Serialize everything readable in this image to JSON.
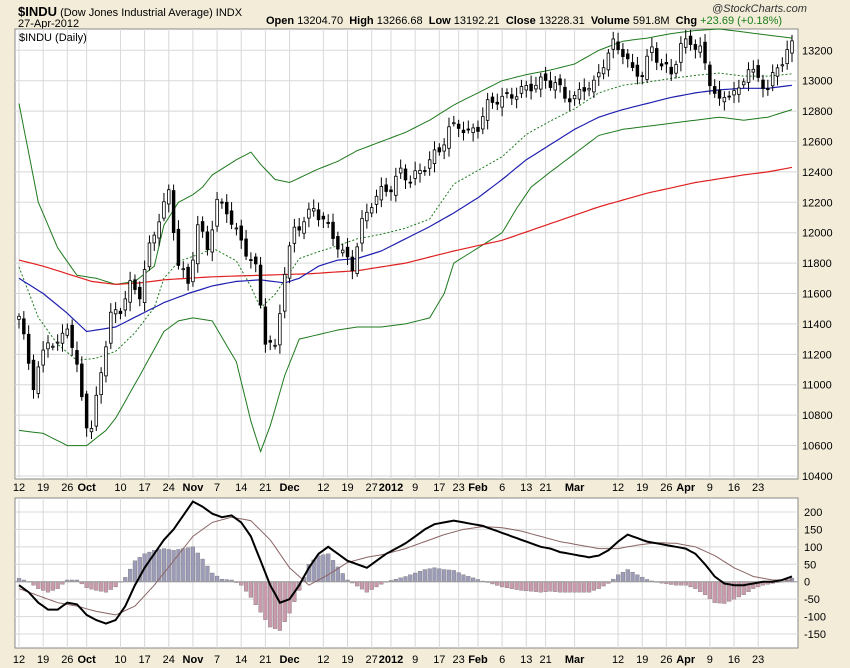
{
  "header": {
    "symbol": "$INDU",
    "name": "(Dow Jones Industrial Average)",
    "exchange": "INDX",
    "date": "27-Apr-2012",
    "open_label": "Open",
    "open": "13204.70",
    "high_label": "High",
    "high": "13266.68",
    "low_label": "Low",
    "low": "13192.21",
    "close_label": "Close",
    "close": "13228.31",
    "volume_label": "Volume",
    "volume": "591.8M",
    "chg_label": "Chg",
    "chg": "+23.69 (+0.18%)",
    "watermark": "@StockCharts.com",
    "panel_label": "$INDU (Daily)"
  },
  "colors": {
    "background": "#f2ecd9",
    "panel": "#ffffff",
    "grid": "#d8d8d8",
    "up": "#ffffff",
    "down": "#000000",
    "sma50": "#1f1fb0",
    "sma200": "#e02020",
    "bollinger": "#1e7a1e",
    "histogram_pos": "#9c9cb8",
    "histogram_neg": "#c99aab",
    "macd": "#000000",
    "signal": "#8a6464"
  },
  "chart_data": [
    {
      "type": "candlestick",
      "title": "$INDU (Daily)",
      "ylim": [
        10380,
        13340
      ],
      "yticks": [
        10400,
        10600,
        10800,
        11000,
        11200,
        11400,
        11600,
        11800,
        12000,
        12200,
        12400,
        12600,
        12800,
        13000,
        13200
      ],
      "x_labels": [
        "12",
        "19",
        "26",
        "Oct",
        "10",
        "17",
        "24",
        "Nov",
        "7",
        "14",
        "21",
        "Dec",
        "12",
        "19",
        "27",
        "2012",
        "9",
        "17",
        "23",
        "Feb",
        "6",
        "13",
        "21",
        "Mar",
        "12",
        "19",
        "26",
        "Apr",
        "9",
        "16",
        "23"
      ],
      "x_label_days": [
        0,
        5,
        10,
        14,
        21,
        26,
        31,
        36,
        41,
        46,
        51,
        56,
        63,
        68,
        73,
        77,
        82,
        87,
        91,
        95,
        100,
        105,
        109,
        115,
        124,
        129,
        134,
        138,
        143,
        148,
        153
      ],
      "bold_labels": [
        "Oct",
        "Nov",
        "Dec",
        "2012",
        "Feb",
        "Mar",
        "Apr"
      ],
      "last_day": 160,
      "close_anchors": [
        [
          0,
          11450
        ],
        [
          3,
          11000
        ],
        [
          6,
          11300
        ],
        [
          8,
          11250
        ],
        [
          10,
          11400
        ],
        [
          12,
          11100
        ],
        [
          14,
          10750
        ],
        [
          15,
          10700
        ],
        [
          17,
          11100
        ],
        [
          19,
          11450
        ],
        [
          21,
          11500
        ],
        [
          23,
          11650
        ],
        [
          25,
          11600
        ],
        [
          27,
          11900
        ],
        [
          29,
          12100
        ],
        [
          31,
          12260
        ],
        [
          33,
          11800
        ],
        [
          35,
          11660
        ],
        [
          37,
          12050
        ],
        [
          39,
          11900
        ],
        [
          41,
          12200
        ],
        [
          43,
          12150
        ],
        [
          45,
          12000
        ],
        [
          47,
          11880
        ],
        [
          49,
          11760
        ],
        [
          51,
          11300
        ],
        [
          53,
          11230
        ],
        [
          55,
          11750
        ],
        [
          57,
          12020
        ],
        [
          59,
          12080
        ],
        [
          61,
          12160
        ],
        [
          63,
          12080
        ],
        [
          65,
          11980
        ],
        [
          67,
          11860
        ],
        [
          69,
          11780
        ],
        [
          71,
          12060
        ],
        [
          73,
          12200
        ],
        [
          75,
          12270
        ],
        [
          77,
          12300
        ],
        [
          79,
          12400
        ],
        [
          81,
          12350
        ],
        [
          83,
          12400
        ],
        [
          85,
          12480
        ],
        [
          87,
          12540
        ],
        [
          89,
          12680
        ],
        [
          91,
          12710
        ],
        [
          93,
          12650
        ],
        [
          95,
          12700
        ],
        [
          97,
          12840
        ],
        [
          99,
          12880
        ],
        [
          101,
          12890
        ],
        [
          103,
          12920
        ],
        [
          105,
          12950
        ],
        [
          107,
          12980
        ],
        [
          109,
          13000
        ],
        [
          111,
          12980
        ],
        [
          113,
          12900
        ],
        [
          115,
          12880
        ],
        [
          117,
          12960
        ],
        [
          119,
          12970
        ],
        [
          121,
          13120
        ],
        [
          123,
          13240
        ],
        [
          125,
          13190
        ],
        [
          127,
          13060
        ],
        [
          129,
          13050
        ],
        [
          131,
          13210
        ],
        [
          133,
          13100
        ],
        [
          135,
          13050
        ],
        [
          137,
          13230
        ],
        [
          139,
          13260
        ],
        [
          141,
          13200
        ],
        [
          143,
          13000
        ],
        [
          145,
          12850
        ],
        [
          147,
          12930
        ],
        [
          149,
          12920
        ],
        [
          151,
          13100
        ],
        [
          153,
          13000
        ],
        [
          155,
          12960
        ],
        [
          157,
          13080
        ],
        [
          159,
          13200
        ],
        [
          160,
          13228
        ]
      ],
      "sma50_anchors": [
        [
          0,
          11700
        ],
        [
          5,
          11600
        ],
        [
          10,
          11470
        ],
        [
          14,
          11350
        ],
        [
          20,
          11380
        ],
        [
          25,
          11460
        ],
        [
          30,
          11540
        ],
        [
          35,
          11600
        ],
        [
          40,
          11650
        ],
        [
          45,
          11680
        ],
        [
          50,
          11690
        ],
        [
          55,
          11670
        ],
        [
          58,
          11700
        ],
        [
          62,
          11780
        ],
        [
          66,
          11820
        ],
        [
          70,
          11830
        ],
        [
          75,
          11880
        ],
        [
          80,
          11960
        ],
        [
          85,
          12040
        ],
        [
          90,
          12130
        ],
        [
          95,
          12230
        ],
        [
          100,
          12350
        ],
        [
          105,
          12480
        ],
        [
          110,
          12580
        ],
        [
          115,
          12680
        ],
        [
          120,
          12760
        ],
        [
          125,
          12810
        ],
        [
          130,
          12850
        ],
        [
          135,
          12890
        ],
        [
          140,
          12920
        ],
        [
          145,
          12940
        ],
        [
          150,
          12950
        ],
        [
          155,
          12950
        ],
        [
          160,
          12970
        ]
      ],
      "sma200_anchors": [
        [
          0,
          11820
        ],
        [
          5,
          11780
        ],
        [
          10,
          11730
        ],
        [
          15,
          11680
        ],
        [
          20,
          11660
        ],
        [
          25,
          11670
        ],
        [
          30,
          11690
        ],
        [
          40,
          11710
        ],
        [
          50,
          11720
        ],
        [
          60,
          11730
        ],
        [
          70,
          11750
        ],
        [
          80,
          11800
        ],
        [
          90,
          11880
        ],
        [
          100,
          11950
        ],
        [
          110,
          12060
        ],
        [
          120,
          12170
        ],
        [
          130,
          12260
        ],
        [
          140,
          12330
        ],
        [
          150,
          12380
        ],
        [
          155,
          12400
        ],
        [
          160,
          12430
        ]
      ],
      "bb_upper_anchors": [
        [
          0,
          12850
        ],
        [
          4,
          12200
        ],
        [
          8,
          11900
        ],
        [
          12,
          11720
        ],
        [
          16,
          11700
        ],
        [
          20,
          11660
        ],
        [
          24,
          11680
        ],
        [
          28,
          11780
        ],
        [
          30,
          12050
        ],
        [
          33,
          12200
        ],
        [
          36,
          12250
        ],
        [
          38,
          12300
        ],
        [
          40,
          12380
        ],
        [
          45,
          12480
        ],
        [
          48,
          12530
        ],
        [
          50,
          12450
        ],
        [
          53,
          12350
        ],
        [
          56,
          12330
        ],
        [
          58,
          12360
        ],
        [
          62,
          12420
        ],
        [
          66,
          12470
        ],
        [
          70,
          12540
        ],
        [
          75,
          12600
        ],
        [
          80,
          12660
        ],
        [
          85,
          12740
        ],
        [
          90,
          12840
        ],
        [
          95,
          12920
        ],
        [
          100,
          13000
        ],
        [
          105,
          13040
        ],
        [
          110,
          13070
        ],
        [
          115,
          13110
        ],
        [
          120,
          13200
        ],
        [
          125,
          13260
        ],
        [
          130,
          13280
        ],
        [
          135,
          13310
        ],
        [
          140,
          13330
        ],
        [
          145,
          13340
        ],
        [
          150,
          13320
        ],
        [
          155,
          13300
        ],
        [
          160,
          13280
        ]
      ],
      "bb_lower_anchors": [
        [
          0,
          10700
        ],
        [
          5,
          10680
        ],
        [
          10,
          10600
        ],
        [
          14,
          10600
        ],
        [
          18,
          10700
        ],
        [
          20,
          10780
        ],
        [
          25,
          11060
        ],
        [
          30,
          11350
        ],
        [
          33,
          11420
        ],
        [
          36,
          11440
        ],
        [
          40,
          11420
        ],
        [
          45,
          11150
        ],
        [
          48,
          10760
        ],
        [
          50,
          10560
        ],
        [
          52,
          10730
        ],
        [
          55,
          11060
        ],
        [
          58,
          11300
        ],
        [
          62,
          11330
        ],
        [
          66,
          11360
        ],
        [
          70,
          11380
        ],
        [
          75,
          11380
        ],
        [
          80,
          11400
        ],
        [
          85,
          11440
        ],
        [
          88,
          11600
        ],
        [
          90,
          11800
        ],
        [
          95,
          11900
        ],
        [
          100,
          12000
        ],
        [
          103,
          12160
        ],
        [
          106,
          12300
        ],
        [
          110,
          12400
        ],
        [
          115,
          12520
        ],
        [
          120,
          12640
        ],
        [
          125,
          12680
        ],
        [
          130,
          12700
        ],
        [
          135,
          12720
        ],
        [
          140,
          12740
        ],
        [
          145,
          12760
        ],
        [
          150,
          12740
        ],
        [
          155,
          12760
        ],
        [
          160,
          12810
        ]
      ]
    },
    {
      "type": "macd",
      "ylim": [
        -190,
        240
      ],
      "yticks": [
        -150,
        -100,
        -50,
        0,
        50,
        100,
        150,
        200
      ],
      "macd_anchors": [
        [
          0,
          -10
        ],
        [
          2,
          -30
        ],
        [
          4,
          -60
        ],
        [
          6,
          -80
        ],
        [
          8,
          -80
        ],
        [
          10,
          -60
        ],
        [
          12,
          -65
        ],
        [
          14,
          -95
        ],
        [
          16,
          -110
        ],
        [
          18,
          -120
        ],
        [
          20,
          -110
        ],
        [
          22,
          -70
        ],
        [
          24,
          -10
        ],
        [
          26,
          40
        ],
        [
          28,
          80
        ],
        [
          30,
          120
        ],
        [
          32,
          150
        ],
        [
          34,
          190
        ],
        [
          36,
          230
        ],
        [
          38,
          215
        ],
        [
          40,
          195
        ],
        [
          42,
          185
        ],
        [
          44,
          190
        ],
        [
          46,
          170
        ],
        [
          48,
          130
        ],
        [
          50,
          60
        ],
        [
          52,
          -10
        ],
        [
          54,
          -60
        ],
        [
          56,
          -50
        ],
        [
          58,
          -10
        ],
        [
          60,
          40
        ],
        [
          62,
          80
        ],
        [
          64,
          100
        ],
        [
          66,
          80
        ],
        [
          68,
          60
        ],
        [
          70,
          50
        ],
        [
          72,
          40
        ],
        [
          74,
          60
        ],
        [
          76,
          80
        ],
        [
          78,
          95
        ],
        [
          80,
          110
        ],
        [
          82,
          130
        ],
        [
          84,
          150
        ],
        [
          86,
          165
        ],
        [
          88,
          170
        ],
        [
          90,
          175
        ],
        [
          92,
          170
        ],
        [
          94,
          165
        ],
        [
          96,
          160
        ],
        [
          98,
          150
        ],
        [
          100,
          140
        ],
        [
          102,
          130
        ],
        [
          104,
          120
        ],
        [
          106,
          110
        ],
        [
          108,
          100
        ],
        [
          110,
          95
        ],
        [
          112,
          85
        ],
        [
          114,
          80
        ],
        [
          116,
          75
        ],
        [
          118,
          70
        ],
        [
          120,
          75
        ],
        [
          122,
          90
        ],
        [
          124,
          115
        ],
        [
          126,
          135
        ],
        [
          128,
          125
        ],
        [
          130,
          115
        ],
        [
          132,
          110
        ],
        [
          134,
          105
        ],
        [
          136,
          100
        ],
        [
          138,
          95
        ],
        [
          140,
          80
        ],
        [
          142,
          50
        ],
        [
          144,
          15
        ],
        [
          146,
          -5
        ],
        [
          148,
          -10
        ],
        [
          150,
          -10
        ],
        [
          152,
          -5
        ],
        [
          154,
          0
        ],
        [
          156,
          0
        ],
        [
          158,
          5
        ],
        [
          160,
          15
        ]
      ],
      "signal_anchors": [
        [
          0,
          -20
        ],
        [
          4,
          -40
        ],
        [
          8,
          -60
        ],
        [
          12,
          -70
        ],
        [
          16,
          -85
        ],
        [
          20,
          -95
        ],
        [
          24,
          -70
        ],
        [
          28,
          -10
        ],
        [
          32,
          60
        ],
        [
          36,
          130
        ],
        [
          40,
          170
        ],
        [
          44,
          185
        ],
        [
          48,
          175
        ],
        [
          52,
          120
        ],
        [
          56,
          40
        ],
        [
          60,
          -10
        ],
        [
          64,
          20
        ],
        [
          68,
          55
        ],
        [
          72,
          70
        ],
        [
          76,
          80
        ],
        [
          80,
          95
        ],
        [
          84,
          115
        ],
        [
          88,
          135
        ],
        [
          92,
          150
        ],
        [
          96,
          158
        ],
        [
          100,
          155
        ],
        [
          104,
          145
        ],
        [
          108,
          130
        ],
        [
          112,
          115
        ],
        [
          116,
          105
        ],
        [
          120,
          95
        ],
        [
          124,
          95
        ],
        [
          128,
          105
        ],
        [
          132,
          112
        ],
        [
          136,
          110
        ],
        [
          140,
          100
        ],
        [
          144,
          75
        ],
        [
          148,
          40
        ],
        [
          152,
          15
        ],
        [
          156,
          5
        ],
        [
          160,
          5
        ]
      ]
    }
  ]
}
